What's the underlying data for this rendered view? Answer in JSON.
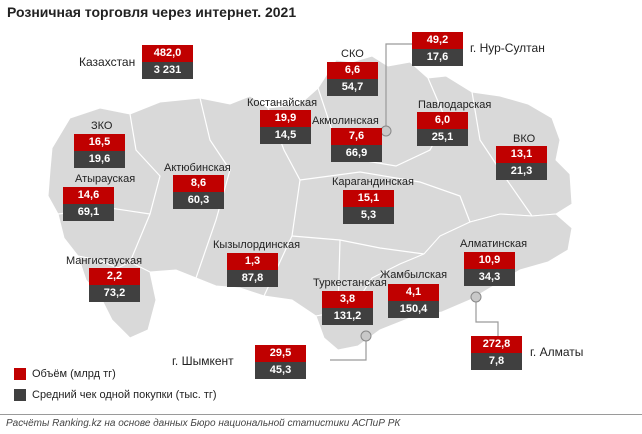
{
  "title": "Розничная торговля через интернет. 2021",
  "colors": {
    "volume": "#c00000",
    "avg_check": "#404040",
    "map_fill": "#d9d9d9",
    "map_stroke": "#ffffff"
  },
  "regions": {
    "kz": {
      "name": "Казахстан",
      "volume": "482,0",
      "check": "3 231"
    },
    "sko": {
      "name": "СКО",
      "volume": "6,6",
      "check": "54,7"
    },
    "nur": {
      "name": "г. Нур-Султан",
      "volume": "49,2",
      "check": "17,6"
    },
    "kost": {
      "name": "Костанайская",
      "volume": "19,9",
      "check": "14,5"
    },
    "akm": {
      "name": "Акмолинская",
      "volume": "7,6",
      "check": "66,9"
    },
    "pav": {
      "name": "Павлодарская",
      "volume": "6,0",
      "check": "25,1"
    },
    "zko": {
      "name": "ЗКО",
      "volume": "16,5",
      "check": "19,6"
    },
    "vko": {
      "name": "ВКО",
      "volume": "13,1",
      "check": "21,3"
    },
    "akt": {
      "name": "Актюбинская",
      "volume": "8,6",
      "check": "60,3"
    },
    "atyr": {
      "name": "Атырауская",
      "volume": "14,6",
      "check": "69,1"
    },
    "kar": {
      "name": "Карагандинская",
      "volume": "15,1",
      "check": "5,3"
    },
    "kyz": {
      "name": "Кызылординская",
      "volume": "1,3",
      "check": "87,8"
    },
    "alm": {
      "name": "Алматинская",
      "volume": "10,9",
      "check": "34,3"
    },
    "mang": {
      "name": "Мангистауская",
      "volume": "2,2",
      "check": "73,2"
    },
    "turk": {
      "name": "Туркестанская",
      "volume": "3,8",
      "check": "131,2"
    },
    "zham": {
      "name": "Жамбылская",
      "volume": "4,1",
      "check": "150,4"
    },
    "shym": {
      "name": "г. Шымкент",
      "volume": "29,5",
      "check": "45,3"
    },
    "almc": {
      "name": "г. Алматы",
      "volume": "272,8",
      "check": "7,8"
    }
  },
  "legend": {
    "volume_label": "Объём (млрд тг)",
    "check_label": "Средний чек одной покупки (тыс. тг)"
  },
  "footer": "Расчёты Ranking.kz на основе данных Бюро национальной статистики АСПиР РК"
}
